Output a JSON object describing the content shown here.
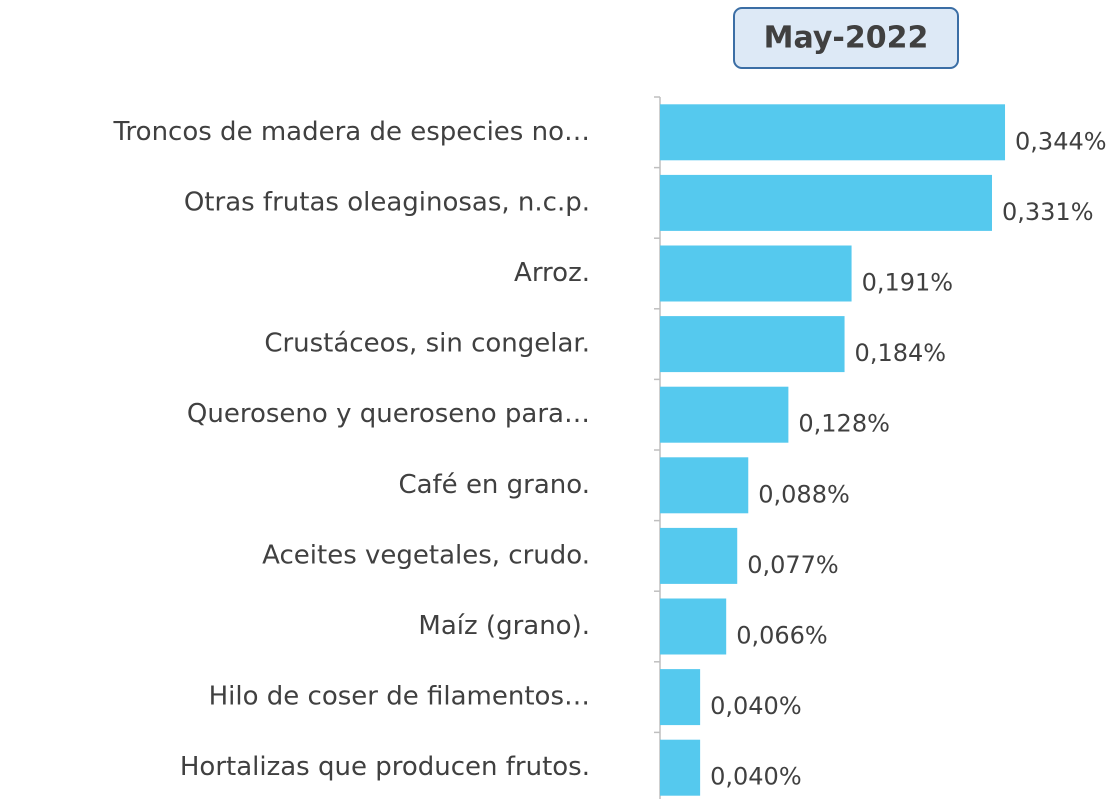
{
  "chart_data": {
    "type": "bar",
    "orientation": "horizontal",
    "title": "May-2022",
    "categories": [
      "Troncos de madera de especies no…",
      "Otras frutas oleaginosas, n.c.p.",
      "Arroz.",
      "Crustáceos, sin congelar.",
      "Queroseno y queroseno para…",
      "Café en grano.",
      "Aceites vegetales, crudo.",
      "Maíz (grano).",
      "Hilo de coser de filamentos…",
      "Hortalizas que producen frutos."
    ],
    "values": [
      0.344,
      0.331,
      0.191,
      0.184,
      0.128,
      0.088,
      0.077,
      0.066,
      0.04,
      0.04
    ],
    "value_labels": [
      "0,344%",
      "0,331%",
      "0,191%",
      "0,184%",
      "0,128%",
      "0,088%",
      "0,077%",
      "0,066%",
      "0,040%",
      "0,040%"
    ],
    "color": "#55c9ee"
  }
}
